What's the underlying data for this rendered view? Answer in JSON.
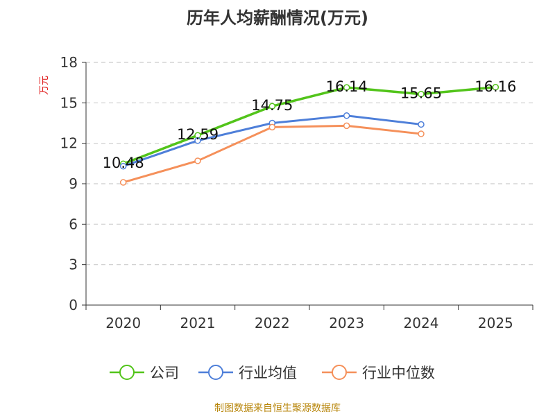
{
  "chart_data": {
    "type": "line",
    "title": "历年人均薪酬情况(万元)",
    "ylabel": "万元",
    "xlabel": "",
    "categories": [
      "2020",
      "2021",
      "2022",
      "2023",
      "2024",
      "2025"
    ],
    "ylim": [
      0,
      18
    ],
    "yticks": [
      0,
      3,
      6,
      9,
      12,
      15,
      18
    ],
    "grid": true,
    "legend_position": "bottom",
    "series": [
      {
        "name": "公司",
        "color": "#52c41a",
        "values": [
          10.48,
          12.59,
          14.75,
          16.14,
          15.65,
          16.16
        ],
        "labels": [
          "10.48",
          "12.59",
          "14.75",
          "16.14",
          "15.65",
          "16.16"
        ]
      },
      {
        "name": "行业均值",
        "color": "#4e7fd9",
        "values": [
          10.3,
          12.2,
          13.5,
          14.05,
          13.4,
          null
        ],
        "labels": []
      },
      {
        "name": "行业中位数",
        "color": "#f5905a",
        "values": [
          9.1,
          10.7,
          13.2,
          13.3,
          12.7,
          null
        ],
        "labels": []
      }
    ]
  },
  "source": "制图数据来自恒生聚源数据库",
  "colors": {
    "axis": "#333333",
    "grid": "#cccccc",
    "ylabel": "#e02020"
  }
}
